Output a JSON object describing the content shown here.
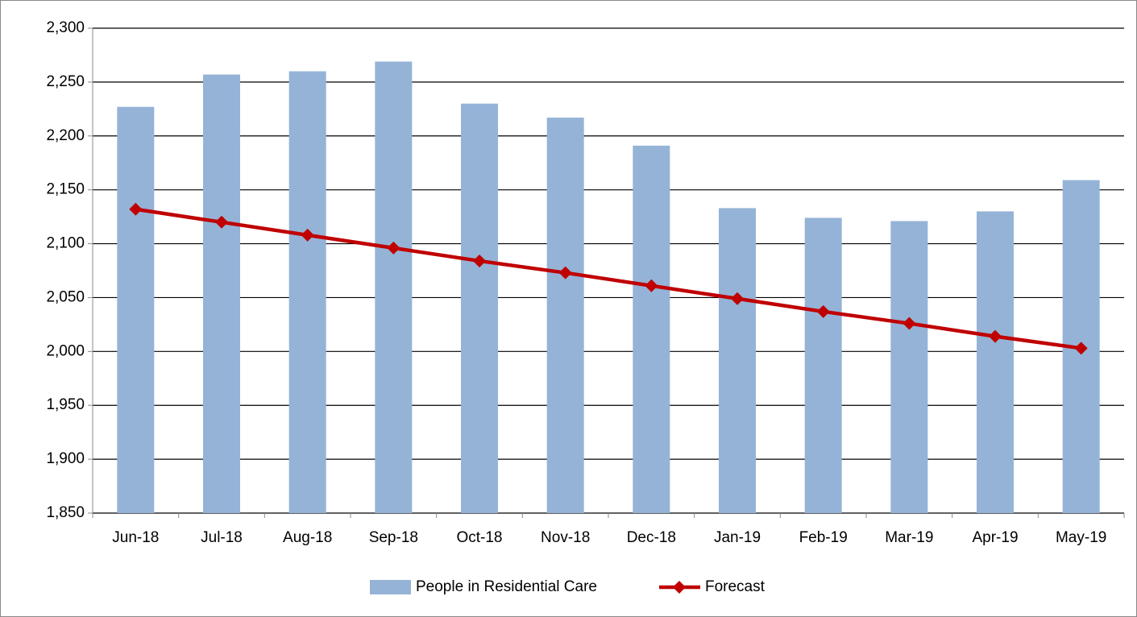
{
  "chart_data": {
    "type": "bar-line",
    "categories": [
      "Jun-18",
      "Jul-18",
      "Aug-18",
      "Sep-18",
      "Oct-18",
      "Nov-18",
      "Dec-18",
      "Jan-19",
      "Feb-19",
      "Mar-19",
      "Apr-19",
      "May-19"
    ],
    "series": [
      {
        "name": "People in Residential Care",
        "type": "bar",
        "color": "#95b3d7",
        "values": [
          2227,
          2257,
          2260,
          2269,
          2230,
          2217,
          2191,
          2133,
          2124,
          2121,
          2130,
          2159
        ]
      },
      {
        "name": "Forecast",
        "type": "line",
        "color": "#c00000",
        "values": [
          2132,
          2120,
          2108,
          2096,
          2084,
          2073,
          2061,
          2049,
          2037,
          2026,
          2014,
          2003
        ]
      }
    ],
    "ylim": [
      1850,
      2300
    ],
    "yticks": [
      {
        "value": 1850,
        "label": "1,850"
      },
      {
        "value": 1900,
        "label": "1,900"
      },
      {
        "value": 1950,
        "label": "1,950"
      },
      {
        "value": 2000,
        "label": "2,000"
      },
      {
        "value": 2050,
        "label": "2,050"
      },
      {
        "value": 2100,
        "label": "2,100"
      },
      {
        "value": 2150,
        "label": "2,150"
      },
      {
        "value": 2200,
        "label": "2,200"
      },
      {
        "value": 2250,
        "label": "2,250"
      },
      {
        "value": 2300,
        "label": "2,300"
      }
    ],
    "grid": true,
    "legend": "bottom"
  }
}
